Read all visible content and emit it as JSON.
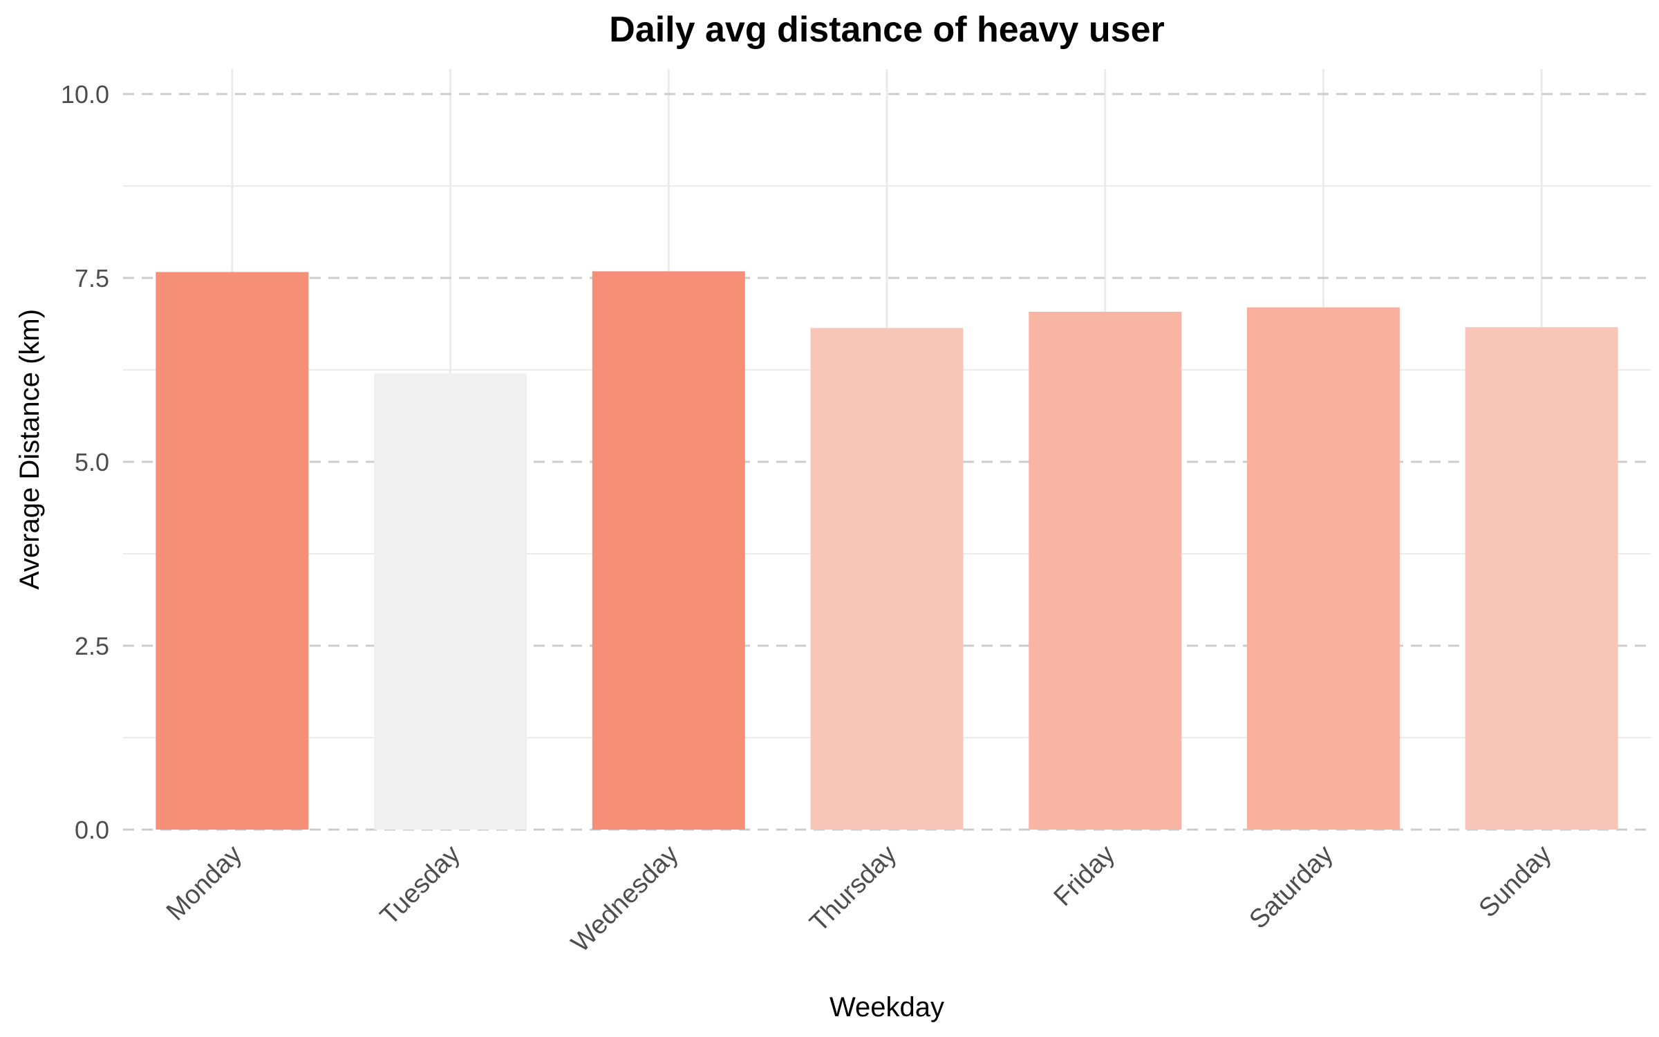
{
  "chart_data": {
    "type": "bar",
    "title": "Daily avg distance of heavy user",
    "xlabel": "Weekday",
    "ylabel": "Average Distance (km)",
    "categories": [
      "Monday",
      "Tuesday",
      "Wednesday",
      "Thursday",
      "Friday",
      "Saturday",
      "Sunday"
    ],
    "values": [
      7.58,
      6.2,
      7.59,
      6.82,
      7.04,
      7.1,
      6.83
    ],
    "bar_colors": [
      "#f68f77",
      "#f0f0f0",
      "#f68f77",
      "#f8c6b8",
      "#f9b5a3",
      "#f9b09d",
      "#f8c6b8"
    ],
    "ylim": [
      0,
      10.35
    ],
    "yticks": [
      0,
      2.5,
      5,
      7.5,
      10
    ],
    "ytick_labels": [
      "0.0",
      "2.5",
      "5.0",
      "7.5",
      "10.0"
    ],
    "grid": {
      "major_color": "#cccccc",
      "major_style": "dashed",
      "minor_color": "#ebebeb",
      "vertical_color": "#ebebeb"
    },
    "legend": "none"
  }
}
